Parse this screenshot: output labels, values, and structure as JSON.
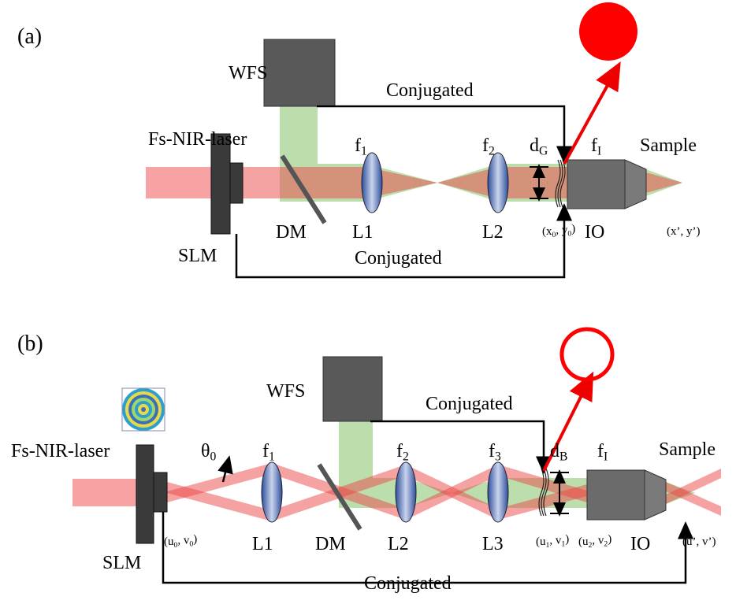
{
  "panel_a": {
    "label": "(a)",
    "wfs": "WFS",
    "conjugated_top": "Conjugated",
    "laser": "Fs-NIR-laser",
    "focal_1": {
      "base": "f",
      "sub": "1"
    },
    "focal_2": {
      "base": "f",
      "sub": "2"
    },
    "beam_size": {
      "base": "d",
      "sub": "G"
    },
    "focal_io": {
      "base": "f",
      "sub": "I"
    },
    "sample": "Sample",
    "dm": "DM",
    "lens_1": "L1",
    "lens_2": "L2",
    "pupil_plane": {
      "parts": [
        "(x",
        "0",
        ", y",
        "0",
        ")"
      ]
    },
    "io": "IO",
    "image_plane": "(x’, y’)",
    "slm": "SLM",
    "conjugated_bottom": "Conjugated"
  },
  "panel_b": {
    "label": "(b)",
    "wfs": "WFS",
    "conjugated_top": "Conjugated",
    "laser": "Fs-NIR-laser",
    "angle": {
      "base": "θ",
      "sub": "0"
    },
    "focal_1": {
      "base": "f",
      "sub": "1"
    },
    "focal_2": {
      "base": "f",
      "sub": "2"
    },
    "focal_3": {
      "base": "f",
      "sub": "3"
    },
    "beam_size": {
      "base": "d",
      "sub": "B"
    },
    "focal_io": {
      "base": "f",
      "sub": "I"
    },
    "sample": "Sample",
    "slm_plane": {
      "parts": [
        "(u",
        "0",
        ", v",
        "0",
        ")"
      ]
    },
    "lens_1": "L1",
    "dm": "DM",
    "lens_2": "L2",
    "lens_3": "L3",
    "relay_plane": {
      "parts": [
        "(u",
        "1",
        ", v",
        "1",
        ")"
      ]
    },
    "pupil_plane": {
      "parts": [
        "(u",
        "2",
        ", v",
        "2",
        ")"
      ]
    },
    "io": "IO",
    "image_plane": "(u’, v’)",
    "slm": "SLM",
    "conjugated_bottom": "Conjugated"
  }
}
